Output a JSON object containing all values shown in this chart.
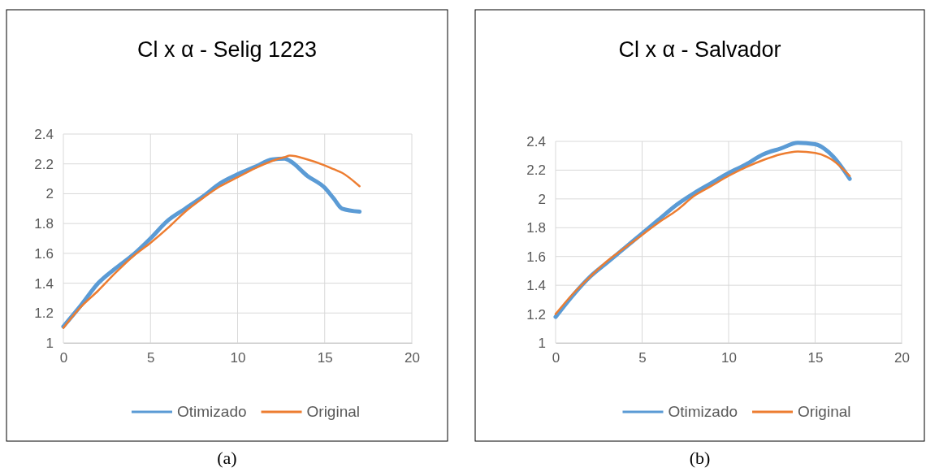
{
  "chart_data": [
    {
      "type": "line",
      "title": "Cl x α - Selig 1223",
      "x": [
        0,
        1,
        2,
        3,
        4,
        5,
        6,
        7,
        8,
        9,
        10,
        11,
        12,
        12.7,
        13,
        14,
        15,
        15.5,
        16,
        17
      ],
      "grid": true,
      "legend": "bottom",
      "xlim": [
        0,
        20
      ],
      "xticks": [
        0,
        5,
        10,
        15,
        20
      ],
      "ylim": [
        1,
        2.4
      ],
      "yticks": [
        1,
        1.2,
        1.4,
        1.6,
        1.8,
        2,
        2.2,
        2.4
      ],
      "annotations": [
        "(a)"
      ],
      "series": [
        {
          "name": "Otimizado",
          "color": "#5b9bd5",
          "values": [
            1.11,
            1.25,
            1.4,
            1.5,
            1.59,
            1.7,
            1.82,
            1.9,
            1.98,
            2.07,
            2.13,
            2.18,
            2.23,
            2.235,
            2.22,
            2.12,
            2.04,
            1.97,
            1.9,
            1.88
          ]
        },
        {
          "name": "Original",
          "color": "#ed7d31",
          "values": [
            1.1,
            1.24,
            1.35,
            1.47,
            1.58,
            1.67,
            1.77,
            1.88,
            1.97,
            2.05,
            2.11,
            2.17,
            2.22,
            2.245,
            2.255,
            2.23,
            2.19,
            2.165,
            2.14,
            2.05
          ]
        }
      ]
    },
    {
      "type": "line",
      "title": "Cl x α - Salvador",
      "x": [
        0,
        1,
        2,
        3,
        4,
        5,
        6,
        7,
        8,
        9,
        10,
        11,
        12,
        13,
        14,
        15,
        16,
        17
      ],
      "grid": true,
      "legend": "bottom",
      "xlim": [
        0,
        20
      ],
      "xticks": [
        0,
        5,
        10,
        15,
        20
      ],
      "ylim": [
        1,
        2.4
      ],
      "yticks": [
        1,
        1.2,
        1.4,
        1.6,
        1.8,
        2,
        2.2,
        2.4
      ],
      "annotations": [
        "(b)"
      ],
      "series": [
        {
          "name": "Otimizado",
          "color": "#5b9bd5",
          "values": [
            1.18,
            1.33,
            1.46,
            1.56,
            1.66,
            1.76,
            1.86,
            1.96,
            2.04,
            2.11,
            2.18,
            2.24,
            2.31,
            2.35,
            2.39,
            2.38,
            2.3,
            2.14
          ]
        },
        {
          "name": "Original",
          "color": "#ed7d31",
          "values": [
            1.2,
            1.34,
            1.46,
            1.57,
            1.66,
            1.75,
            1.84,
            1.92,
            2.02,
            2.09,
            2.16,
            2.22,
            2.27,
            2.31,
            2.33,
            2.32,
            2.27,
            2.16
          ]
        }
      ]
    }
  ]
}
